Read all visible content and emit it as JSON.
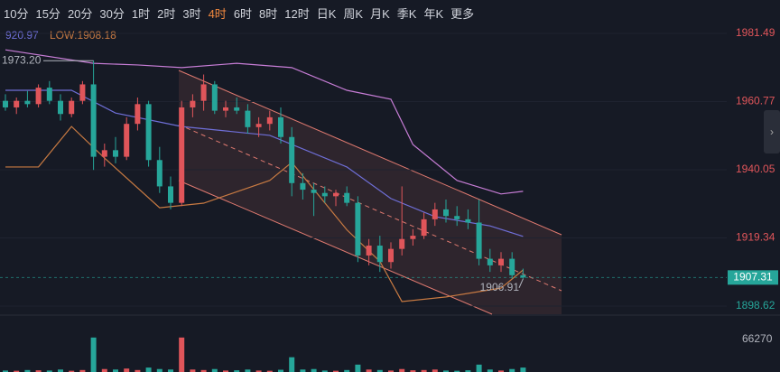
{
  "toolbar": {
    "tabs": [
      "10分",
      "15分",
      "20分",
      "30分",
      "1时",
      "2时",
      "3时",
      "4时",
      "6时",
      "8时",
      "12时",
      "日K",
      "周K",
      "月K",
      "季K",
      "年K"
    ],
    "more": "更多",
    "active": 7
  },
  "chart_data": {
    "type": "candlestick",
    "high_label": "920.97",
    "low_label": "LOW:1908.18",
    "ylim": [
      1896.15,
      1983.96
    ],
    "yticks": [
      1981.49,
      1960.77,
      1940.05,
      1919.34,
      1898.62
    ],
    "last_price": 1907.31,
    "max_label": {
      "value": 1973.2,
      "label": "1973.20"
    },
    "min_label": 1906.91,
    "up_color": "#e0555a",
    "down_color": "#26a69a",
    "ohlc": [
      [
        1961,
        1963,
        1958,
        1959
      ],
      [
        1959,
        1962,
        1957,
        1961
      ],
      [
        1961,
        1964,
        1959,
        1960
      ],
      [
        1960,
        1966,
        1959,
        1965
      ],
      [
        1965,
        1967,
        1960,
        1961
      ],
      [
        1961,
        1963,
        1955,
        1957
      ],
      [
        1957,
        1962,
        1956,
        1961
      ],
      [
        1961,
        1967,
        1960,
        1966
      ],
      [
        1966,
        1973.2,
        1940,
        1944
      ],
      [
        1944,
        1948,
        1941,
        1946
      ],
      [
        1946,
        1950,
        1942,
        1944
      ],
      [
        1944,
        1956,
        1943,
        1954
      ],
      [
        1954,
        1962,
        1952,
        1960
      ],
      [
        1960,
        1961,
        1941,
        1943
      ],
      [
        1943,
        1947,
        1933,
        1935
      ],
      [
        1935,
        1938,
        1928,
        1930
      ],
      [
        1930,
        1961,
        1929,
        1959
      ],
      [
        1959,
        1963,
        1956,
        1961
      ],
      [
        1961,
        1969,
        1958,
        1966
      ],
      [
        1966,
        1967,
        1957,
        1958
      ],
      [
        1958,
        1961,
        1956,
        1959
      ],
      [
        1959,
        1962,
        1957,
        1958
      ],
      [
        1958,
        1960,
        1951,
        1953
      ],
      [
        1953,
        1956,
        1950,
        1954
      ],
      [
        1954,
        1958,
        1952,
        1956
      ],
      [
        1956,
        1959,
        1948,
        1950
      ],
      [
        1950,
        1953,
        1932,
        1936
      ],
      [
        1936,
        1939,
        1931,
        1934
      ],
      [
        1934,
        1936,
        1926,
        1933
      ],
      [
        1933,
        1935,
        1930,
        1932
      ],
      [
        1932,
        1934,
        1929,
        1933
      ],
      [
        1933,
        1935,
        1929,
        1930
      ],
      [
        1930,
        1932,
        1912,
        1914
      ],
      [
        1914,
        1919,
        1911,
        1917
      ],
      [
        1917,
        1920,
        1909,
        1912
      ],
      [
        1912,
        1918,
        1910,
        1916
      ],
      [
        1916,
        1935,
        1914,
        1919
      ],
      [
        1919,
        1922,
        1917,
        1920
      ],
      [
        1920,
        1927,
        1919,
        1925
      ],
      [
        1925,
        1930,
        1923,
        1928
      ],
      [
        1928,
        1931,
        1924,
        1926
      ],
      [
        1926,
        1929,
        1923,
        1925
      ],
      [
        1925,
        1928,
        1922,
        1924
      ],
      [
        1924,
        1931,
        1911,
        1913
      ],
      [
        1913,
        1916,
        1909,
        1911
      ],
      [
        1911,
        1915,
        1909,
        1913
      ],
      [
        1913,
        1915,
        1907,
        1908
      ],
      [
        1908,
        1910,
        1906.91,
        1907.31
      ]
    ],
    "overlays": [
      {
        "color": "#c77dd6",
        "x": [
          0,
          8,
          12,
          16,
          21,
          26,
          31,
          35,
          37,
          41,
          45,
          47
        ],
        "values": [
          1976.5,
          1972.4,
          1971.9,
          1971.1,
          1972.4,
          1971.1,
          1964.2,
          1961.5,
          1947.7,
          1936.8,
          1932.7,
          1933.5
        ]
      },
      {
        "color": "#6f6fd8",
        "x": [
          0,
          6,
          10,
          16,
          24,
          31,
          35,
          39,
          44,
          47
        ],
        "values": [
          1964.2,
          1964.2,
          1957.3,
          1953.2,
          1950.5,
          1940.9,
          1931.3,
          1925.8,
          1923,
          1919.8
        ]
      },
      {
        "color": "#c87a42",
        "x": [
          0,
          3,
          6,
          9,
          14,
          18,
          24,
          26,
          31,
          34,
          36,
          40,
          45,
          47
        ],
        "values": [
          1940.9,
          1940.9,
          1953.2,
          1943.6,
          1928.5,
          1929.9,
          1936.8,
          1942.3,
          1921.8,
          1912.2,
          1900,
          1901.4,
          1904.1,
          1909.6
        ]
      }
    ],
    "vlim": [
      0,
      110000
    ],
    "vticks": [
      66270
    ],
    "volume": [
      3000,
      2500,
      4000,
      3500,
      3000,
      5000,
      2500,
      4000,
      70000,
      6000,
      5000,
      7000,
      4000,
      9000,
      6000,
      5000,
      70000,
      5000,
      4000,
      6000,
      3000,
      3500,
      5000,
      3000,
      2500,
      4500,
      30000,
      5000,
      6000,
      3000,
      2500,
      4000,
      15000,
      5000,
      4000,
      3000,
      6000,
      3500,
      4000,
      5000,
      3000,
      2500,
      3500,
      15000,
      5000,
      3000,
      6000,
      9000
    ]
  }
}
